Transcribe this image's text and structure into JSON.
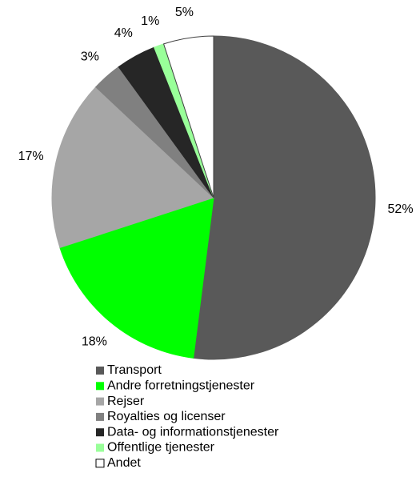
{
  "chart_data": {
    "type": "pie",
    "categories": [
      "Transport",
      "Andre forretningstjenester",
      "Rejser",
      "Royalties og licenser",
      "Data- og informationstjenester",
      "Offentlige tjenester",
      "Andet"
    ],
    "values": [
      52,
      18,
      17,
      3,
      4,
      1,
      5
    ],
    "value_labels": [
      "52%",
      "18%",
      "17%",
      "3%",
      "4%",
      "1%",
      "5%"
    ],
    "colors": [
      "#595959",
      "#00ff00",
      "#a6a6a6",
      "#808080",
      "#262626",
      "#99ff99",
      "#ffffff"
    ],
    "legend": "bottom"
  }
}
